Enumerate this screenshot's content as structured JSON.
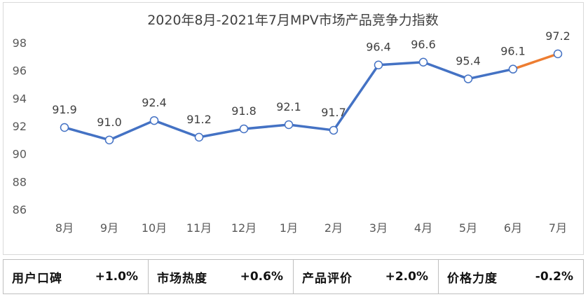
{
  "chart_data": {
    "type": "line",
    "title": "2020年8月-2021年7月MPV市场产品竞争力指数",
    "categories": [
      "8月",
      "9月",
      "10月",
      "11月",
      "12月",
      "1月",
      "2月",
      "3月",
      "4月",
      "5月",
      "6月",
      "7月"
    ],
    "values": [
      91.9,
      91.0,
      92.4,
      91.2,
      91.8,
      92.1,
      91.7,
      96.4,
      96.6,
      95.4,
      96.1,
      97.2
    ],
    "data_labels": [
      "91.9",
      "91.0",
      "92.4",
      "91.2",
      "91.8",
      "92.1",
      "91.7",
      "96.4",
      "96.6",
      "95.4",
      "96.1",
      "97.2"
    ],
    "ylim": [
      86,
      98
    ],
    "yticks": [
      86,
      88,
      90,
      92,
      94,
      96,
      98
    ],
    "grid": false,
    "colors": {
      "line": "#4472c4",
      "highlight": "#ed7d31",
      "drop_line": "#bdd7ee"
    }
  },
  "metrics": [
    {
      "label": "用户口碑",
      "value": "+1.0%"
    },
    {
      "label": "市场热度",
      "value": "+0.6%"
    },
    {
      "label": "产品评价",
      "value": "+2.0%"
    },
    {
      "label": "价格力度",
      "value": "-0.2%"
    }
  ]
}
